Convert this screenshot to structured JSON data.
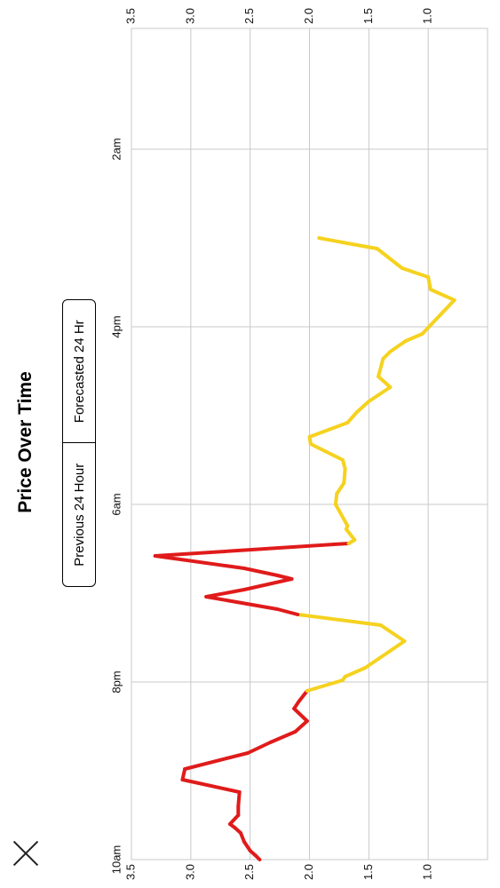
{
  "header": {
    "title": "Price Over Time",
    "close_icon": "close-icon"
  },
  "toggle": {
    "options": [
      "Previous 24 Hour",
      "Forecasted 24 Hr"
    ],
    "selected": "Forecasted 24 Hr"
  },
  "colors": {
    "high": "#e01b1b",
    "low": "#f5d21f",
    "grid": "#c8c8c8"
  },
  "chart_data": {
    "type": "line",
    "title": "Price Over Time",
    "x_ticks": [
      "10am",
      "8pm",
      "6am",
      "4pm",
      "2am"
    ],
    "y_ticks": [
      3.5,
      3.0,
      2.5,
      2.0,
      1.5,
      1.0
    ],
    "ylim": [
      0.5,
      3.5
    ],
    "grid": true,
    "threshold": 2.0,
    "x_unit_hours": 1,
    "series": [
      {
        "x": [
          0,
          0.2,
          0.5,
          1,
          1.5,
          1.8,
          2,
          2.5,
          3,
          3.8,
          4.5,
          5.1,
          6,
          6.6,
          7.2,
          7.8,
          8.5,
          8.9,
          9.5,
          10.1,
          10.3,
          10.8,
          12.3,
          13.2,
          13.8,
          14.1,
          14.8,
          15.2,
          15.8,
          16,
          16.4,
          17.1,
          17.8,
          18,
          18.6,
          18.8,
          20,
          20.6,
          21.2,
          22,
          22.5,
          23.4,
          23.8,
          24.6,
          25.2,
          25.8,
          26.6,
          27.2,
          28.2,
          28.6,
          29.2,
          29.6,
          31.5,
          32.1,
          32.8,
          33.3,
          34.4,
          34.7,
          35
        ],
        "y": [
          2.42,
          2.45,
          2.5,
          2.55,
          2.58,
          2.63,
          2.67,
          2.6,
          2.6,
          2.59,
          3.07,
          3.05,
          2.52,
          2.33,
          2.12,
          2.02,
          2.13,
          2.09,
          2.02,
          1.72,
          1.7,
          1.53,
          1.2,
          1.4,
          2.1,
          2.27,
          2.87,
          2.55,
          2.15,
          2.27,
          2.55,
          3.3,
          1.67,
          1.62,
          1.69,
          1.68,
          1.78,
          1.77,
          1.71,
          1.7,
          1.72,
          1.99,
          2.0,
          1.68,
          1.6,
          1.5,
          1.32,
          1.42,
          1.38,
          1.32,
          1.19,
          1.05,
          0.78,
          0.98,
          1.0,
          1.22,
          1.43,
          1.68,
          1.92
        ]
      }
    ]
  }
}
